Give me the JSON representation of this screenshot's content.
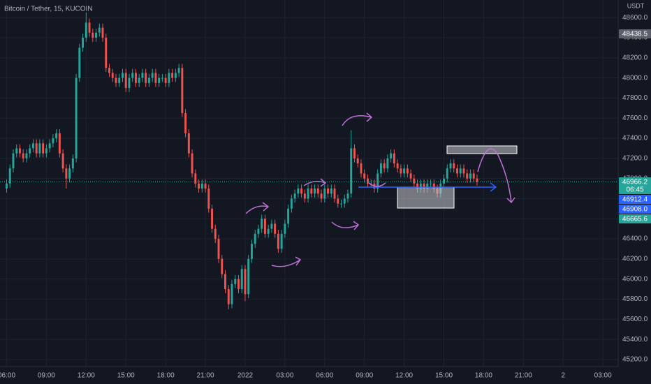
{
  "chart_data": {
    "type": "candlestick",
    "title": "Bitcoin / Tether, 15, KUCOIN",
    "y_unit": "USDT",
    "up_color": "#26a69a",
    "down_color": "#ef5350",
    "grid": true,
    "xlim": [
      -2,
      184.6
    ],
    "ylim": [
      45130,
      48775
    ],
    "xticks": [
      {
        "value": 0,
        "label": "06:00"
      },
      {
        "value": 12,
        "label": "09:00"
      },
      {
        "value": 24,
        "label": "12:00"
      },
      {
        "value": 36,
        "label": "15:00"
      },
      {
        "value": 48,
        "label": "18:00"
      },
      {
        "value": 60,
        "label": "21:00"
      },
      {
        "value": 72,
        "label": "2022"
      },
      {
        "value": 84,
        "label": "03:00"
      },
      {
        "value": 96,
        "label": "06:00"
      },
      {
        "value": 108,
        "label": "09:00"
      },
      {
        "value": 120,
        "label": "12:00"
      },
      {
        "value": 132,
        "label": "15:00"
      },
      {
        "value": 144,
        "label": "18:00"
      },
      {
        "value": 156,
        "label": "21:00"
      },
      {
        "value": 168,
        "label": "2"
      },
      {
        "value": 180,
        "label": "03:00"
      }
    ],
    "yticks": [
      {
        "value": 45200,
        "label": "45200.0"
      },
      {
        "value": 45400,
        "label": "45400.0"
      },
      {
        "value": 45600,
        "label": "45600.0"
      },
      {
        "value": 45800,
        "label": "45800.0"
      },
      {
        "value": 46000,
        "label": "46000.0"
      },
      {
        "value": 46200,
        "label": "46200.0"
      },
      {
        "value": 46400,
        "label": "46400.0"
      },
      {
        "value": 46600,
        "label": "46600.0"
      },
      {
        "value": 46800,
        "label": "46800.0"
      },
      {
        "value": 47000,
        "label": "47000.0"
      },
      {
        "value": 47200,
        "label": "47200.0"
      },
      {
        "value": 47400,
        "label": "47400.0"
      },
      {
        "value": 47600,
        "label": "47600.0"
      },
      {
        "value": 47800,
        "label": "47800.0"
      },
      {
        "value": 48000,
        "label": "48000.0"
      },
      {
        "value": 48200,
        "label": "48200.0"
      },
      {
        "value": 48400,
        "label": "48400.0"
      },
      {
        "value": 48600,
        "label": "48600.0"
      }
    ],
    "price_labels": [
      {
        "value": 48438.5,
        "color": "#5d606b"
      },
      {
        "value": 46966.2,
        "color": "#26a69a",
        "countdown": "06:45"
      },
      {
        "value": 46912.4,
        "color": "#2962ff"
      },
      {
        "value": 46908,
        "label": "46908.0",
        "color": "#2962ff"
      },
      {
        "value": 46665.6,
        "color": "#26a69a"
      }
    ],
    "ohlc": [
      [
        46900,
        46990,
        46860,
        46950
      ],
      [
        46950,
        47140,
        46910,
        47100
      ],
      [
        47100,
        47290,
        47060,
        47250
      ],
      [
        47250,
        47340,
        47210,
        47300
      ],
      [
        47300,
        47340,
        47210,
        47250
      ],
      [
        47250,
        47290,
        47160,
        47200
      ],
      [
        47200,
        47290,
        47160,
        47250
      ],
      [
        47250,
        47340,
        47210,
        47300
      ],
      [
        47300,
        47390,
        47260,
        47350
      ],
      [
        47350,
        47390,
        47210,
        47250
      ],
      [
        47250,
        47390,
        47210,
        47350
      ],
      [
        47350,
        47390,
        47210,
        47250
      ],
      [
        47250,
        47340,
        47210,
        47300
      ],
      [
        47300,
        47390,
        47260,
        47350
      ],
      [
        47350,
        47440,
        47310,
        47400
      ],
      [
        47400,
        47490,
        47360,
        47450
      ],
      [
        47450,
        47490,
        47210,
        47250
      ],
      [
        47250,
        47290,
        47060,
        47100
      ],
      [
        47100,
        47140,
        46900,
        47000
      ],
      [
        47000,
        47140,
        46960,
        47100
      ],
      [
        47100,
        47240,
        47060,
        47200
      ],
      [
        47200,
        48040,
        47160,
        48000
      ],
      [
        48000,
        48340,
        47960,
        48300
      ],
      [
        48300,
        48440,
        48260,
        48400
      ],
      [
        48400,
        48650,
        48360,
        48550
      ],
      [
        48550,
        48590,
        48410,
        48450
      ],
      [
        48450,
        48490,
        48360,
        48400
      ],
      [
        48400,
        48490,
        48360,
        48450
      ],
      [
        48450,
        48540,
        48410,
        48500
      ],
      [
        48500,
        48540,
        48360,
        48400
      ],
      [
        48400,
        48440,
        48060,
        48100
      ],
      [
        48100,
        48140,
        48010,
        48050
      ],
      [
        48050,
        48090,
        47960,
        48000
      ],
      [
        48000,
        48040,
        47910,
        47950
      ],
      [
        47950,
        48040,
        47910,
        48000
      ],
      [
        48000,
        48090,
        47960,
        48050
      ],
      [
        48050,
        48090,
        47860,
        47900
      ],
      [
        47900,
        48040,
        47860,
        48000
      ],
      [
        48000,
        48090,
        47960,
        48050
      ],
      [
        48050,
        48090,
        47910,
        47950
      ],
      [
        47950,
        48040,
        47910,
        48000
      ],
      [
        48000,
        48090,
        47960,
        48050
      ],
      [
        48050,
        48090,
        47910,
        47950
      ],
      [
        47950,
        48040,
        47910,
        48000
      ],
      [
        48000,
        48090,
        47960,
        48050
      ],
      [
        48050,
        48090,
        47910,
        47950
      ],
      [
        47950,
        48040,
        47910,
        48000
      ],
      [
        48000,
        48040,
        47960,
        48000
      ],
      [
        48000,
        48040,
        47910,
        47950
      ],
      [
        47950,
        48090,
        47910,
        48050
      ],
      [
        48050,
        48090,
        47960,
        48000
      ],
      [
        48000,
        48090,
        47960,
        48050
      ],
      [
        48050,
        48140,
        48010,
        48100
      ],
      [
        48100,
        48140,
        47610,
        47650
      ],
      [
        47650,
        47690,
        47410,
        47450
      ],
      [
        47450,
        47490,
        47210,
        47250
      ],
      [
        47250,
        47290,
        47010,
        47050
      ],
      [
        47050,
        47090,
        46910,
        46950
      ],
      [
        46950,
        46990,
        46860,
        46900
      ],
      [
        46900,
        46990,
        46860,
        46950
      ],
      [
        46950,
        46990,
        46860,
        46900
      ],
      [
        46900,
        46940,
        46660,
        46700
      ],
      [
        46700,
        46740,
        46460,
        46500
      ],
      [
        46500,
        46540,
        46360,
        46400
      ],
      [
        46400,
        46440,
        46160,
        46200
      ],
      [
        46200,
        46240,
        46010,
        46050
      ],
      [
        46050,
        46090,
        45860,
        45900
      ],
      [
        45900,
        45940,
        45700,
        45750
      ],
      [
        45750,
        45990,
        45710,
        45950
      ],
      [
        45950,
        46040,
        45910,
        46000
      ],
      [
        46000,
        46040,
        45860,
        45900
      ],
      [
        45900,
        46140,
        45860,
        46100
      ],
      [
        46100,
        46140,
        45780,
        45850
      ],
      [
        45850,
        46240,
        45810,
        46200
      ],
      [
        46200,
        46390,
        46160,
        46350
      ],
      [
        46350,
        46490,
        46310,
        46450
      ],
      [
        46450,
        46540,
        46410,
        46500
      ],
      [
        46500,
        46640,
        46460,
        46600
      ],
      [
        46600,
        46640,
        46410,
        46450
      ],
      [
        46450,
        46540,
        46410,
        46500
      ],
      [
        46500,
        46590,
        46460,
        46550
      ],
      [
        46550,
        46590,
        46410,
        46450
      ],
      [
        46450,
        46490,
        46260,
        46300
      ],
      [
        46300,
        46490,
        46260,
        46450
      ],
      [
        46450,
        46590,
        46410,
        46550
      ],
      [
        46550,
        46740,
        46510,
        46700
      ],
      [
        46700,
        46840,
        46660,
        46800
      ],
      [
        46800,
        46890,
        46760,
        46850
      ],
      [
        46850,
        46940,
        46810,
        46900
      ],
      [
        46900,
        46940,
        46810,
        46850
      ],
      [
        46850,
        46890,
        46760,
        46800
      ],
      [
        46800,
        46940,
        46760,
        46900
      ],
      [
        46900,
        46940,
        46810,
        46850
      ],
      [
        46850,
        46940,
        46810,
        46900
      ],
      [
        46900,
        46940,
        46810,
        46850
      ],
      [
        46850,
        46890,
        46760,
        46800
      ],
      [
        46800,
        46940,
        46760,
        46900
      ],
      [
        46900,
        46940,
        46810,
        46850
      ],
      [
        46850,
        46940,
        46810,
        46900
      ],
      [
        46900,
        46940,
        46760,
        46800
      ],
      [
        46800,
        46840,
        46710,
        46750
      ],
      [
        46750,
        46790,
        46710,
        46750
      ],
      [
        46750,
        46840,
        46710,
        46800
      ],
      [
        46800,
        46890,
        46760,
        46850
      ],
      [
        46850,
        47480,
        46810,
        47300
      ],
      [
        47300,
        47340,
        47160,
        47200
      ],
      [
        47200,
        47240,
        47110,
        47150
      ],
      [
        47150,
        47190,
        47010,
        47050
      ],
      [
        47050,
        47090,
        46960,
        47000
      ],
      [
        47000,
        47040,
        46910,
        46950
      ],
      [
        46950,
        46990,
        46910,
        46950
      ],
      [
        46950,
        46990,
        46860,
        46900
      ],
      [
        46900,
        47090,
        46860,
        47050
      ],
      [
        47050,
        47190,
        47010,
        47150
      ],
      [
        47150,
        47190,
        47060,
        47100
      ],
      [
        47100,
        47240,
        47060,
        47200
      ],
      [
        47200,
        47290,
        47160,
        47250
      ],
      [
        47250,
        47290,
        47110,
        47150
      ],
      [
        47150,
        47190,
        47060,
        47100
      ],
      [
        47100,
        47140,
        47010,
        47050
      ],
      [
        47050,
        47140,
        47010,
        47100
      ],
      [
        47100,
        47140,
        47010,
        47050
      ],
      [
        47050,
        47090,
        46960,
        47000
      ],
      [
        47000,
        47040,
        46910,
        46950
      ],
      [
        46950,
        46990,
        46860,
        46900
      ],
      [
        46900,
        46990,
        46860,
        46950
      ],
      [
        46950,
        46990,
        46860,
        46900
      ],
      [
        46900,
        46990,
        46860,
        46950
      ],
      [
        46950,
        46990,
        46910,
        46950
      ],
      [
        46950,
        46990,
        46860,
        46900
      ],
      [
        46900,
        46940,
        46810,
        46850
      ],
      [
        46850,
        46990,
        46810,
        46950
      ],
      [
        46950,
        47040,
        46910,
        47000
      ],
      [
        47000,
        47140,
        46960,
        47100
      ],
      [
        47100,
        47190,
        47060,
        47150
      ],
      [
        47150,
        47190,
        47060,
        47100
      ],
      [
        47100,
        47140,
        47010,
        47050
      ],
      [
        47050,
        47140,
        47010,
        47100
      ],
      [
        47100,
        47140,
        47010,
        47050
      ],
      [
        47050,
        47090,
        46960,
        47000
      ],
      [
        47000,
        47090,
        46960,
        47050
      ],
      [
        47050,
        47090,
        46960,
        47000
      ],
      [
        47000,
        47040,
        46930,
        46966.2
      ]
    ]
  }
}
